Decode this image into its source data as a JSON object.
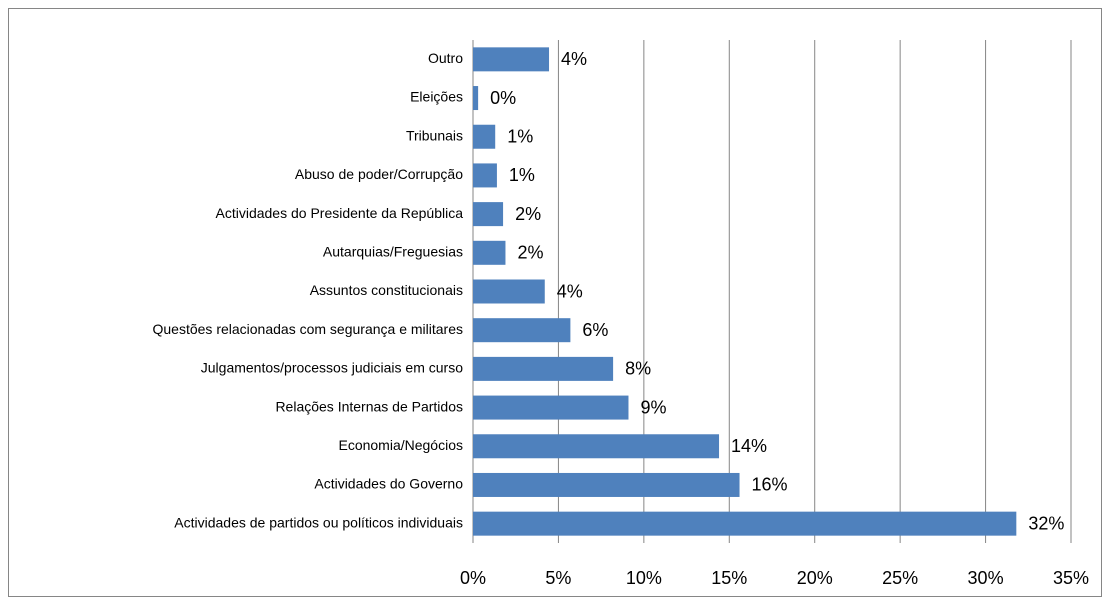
{
  "chart_data": {
    "type": "bar",
    "orientation": "horizontal",
    "categories": [
      "Outro",
      "Eleições",
      "Tribunais",
      "Abuso de poder/Corrupção",
      "Actividades do Presidente da República",
      "Autarquias/Freguesias",
      "Assuntos constitucionais",
      "Questões relacionadas com segurança e militares",
      "Julgamentos/processos judiciais em curso",
      "Relações Internas de Partidos",
      "Economia/Negócios",
      "Actividades do Governo",
      "Actividades de partidos ou políticos individuais"
    ],
    "values": [
      4.45,
      0.3,
      1.3,
      1.4,
      1.76,
      1.9,
      4.2,
      5.7,
      8.2,
      9.1,
      14.4,
      15.6,
      31.8
    ],
    "value_labels": [
      "4%",
      "0%",
      "1%",
      "1%",
      "2%",
      "2%",
      "4%",
      "6%",
      "8%",
      "9%",
      "14%",
      "16%",
      "32%"
    ],
    "color": "#4f81bd",
    "xlim": [
      0,
      35
    ],
    "xticks": [
      {
        "value": 0,
        "label": "0%"
      },
      {
        "value": 5,
        "label": "5%"
      },
      {
        "value": 10,
        "label": "10%"
      },
      {
        "value": 15,
        "label": "15%"
      },
      {
        "value": 20,
        "label": "20%"
      },
      {
        "value": 25,
        "label": "25%"
      },
      {
        "value": 30,
        "label": "30%"
      },
      {
        "value": 35,
        "label": "35%"
      }
    ],
    "grid": true
  }
}
